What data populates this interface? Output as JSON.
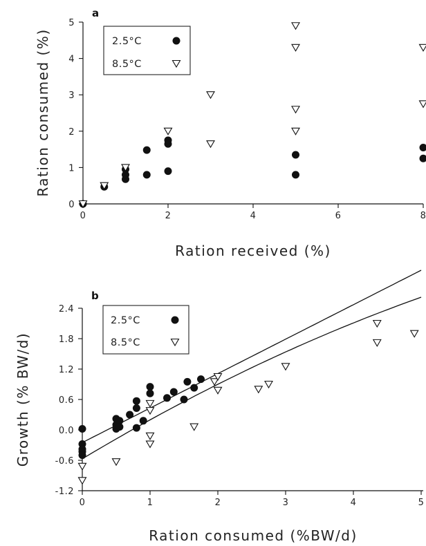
{
  "chart_data": [
    {
      "type": "scatter",
      "panel_label": "a",
      "xlabel": "Ration received (%)",
      "ylabel": "Ration consumed (%)",
      "xlim": [
        0,
        8
      ],
      "ylim": [
        0,
        5
      ],
      "xticks": [
        0,
        2,
        4,
        6,
        8
      ],
      "yticks": [
        0,
        1,
        2,
        3,
        4,
        5
      ],
      "legend_position": "top-left",
      "series": [
        {
          "name": "2.5°C",
          "marker": "filled-circle",
          "points": [
            [
              0,
              0
            ],
            [
              0.5,
              0.47
            ],
            [
              1,
              0.68
            ],
            [
              1,
              0.8
            ],
            [
              1,
              0.95
            ],
            [
              1.5,
              0.8
            ],
            [
              1.5,
              1.48
            ],
            [
              2,
              0.9
            ],
            [
              2,
              1.65
            ],
            [
              2,
              1.75
            ],
            [
              5,
              0.8
            ],
            [
              5,
              1.35
            ],
            [
              8,
              1.25
            ],
            [
              8,
              1.55
            ]
          ]
        },
        {
          "name": "8.5°C",
          "marker": "open-triangle",
          "points": [
            [
              0,
              0
            ],
            [
              0.5,
              0.5
            ],
            [
              1,
              1.0
            ],
            [
              2,
              2.0
            ],
            [
              3,
              1.65
            ],
            [
              3,
              3.0
            ],
            [
              5,
              2.0
            ],
            [
              5,
              2.6
            ],
            [
              5,
              4.3
            ],
            [
              5,
              4.9
            ],
            [
              8,
              2.75
            ],
            [
              8,
              4.3
            ]
          ]
        }
      ]
    },
    {
      "type": "scatter",
      "panel_label": "b",
      "xlabel": "Ration consumed (%BW/d)",
      "ylabel": "Growth (% BW/d)",
      "xlim": [
        0,
        5
      ],
      "ylim": [
        -1.2,
        2.4
      ],
      "xticks": [
        0,
        1,
        2,
        3,
        4,
        5
      ],
      "yticks": [
        "-1.2",
        "-0.6",
        "0.0",
        "0.6",
        "1.2",
        "1.8",
        "2.4"
      ],
      "legend_position": "top-left",
      "series": [
        {
          "name": "2.5°C",
          "marker": "filled-circle",
          "points": [
            [
              0,
              0.02
            ],
            [
              0,
              -0.28
            ],
            [
              0,
              -0.38
            ],
            [
              0,
              -0.43
            ],
            [
              0,
              -0.5
            ],
            [
              0.5,
              0.02
            ],
            [
              0.5,
              0.1
            ],
            [
              0.5,
              0.22
            ],
            [
              0.55,
              0.18
            ],
            [
              0.55,
              0.06
            ],
            [
              0.7,
              0.3
            ],
            [
              0.8,
              0.04
            ],
            [
              0.8,
              0.43
            ],
            [
              0.8,
              0.57
            ],
            [
              0.9,
              0.18
            ],
            [
              1,
              0.72
            ],
            [
              1,
              0.85
            ],
            [
              1.25,
              0.63
            ],
            [
              1.35,
              0.75
            ],
            [
              1.5,
              0.6
            ],
            [
              1.55,
              0.95
            ],
            [
              1.65,
              0.83
            ],
            [
              1.75,
              1.0
            ]
          ]
        },
        {
          "name": "8.5°C",
          "marker": "open-triangle",
          "points": [
            [
              0,
              -0.72
            ],
            [
              0,
              -1.0
            ],
            [
              0.5,
              -0.63
            ],
            [
              1,
              0.52
            ],
            [
              1,
              0.38
            ],
            [
              1,
              -0.12
            ],
            [
              1,
              -0.28
            ],
            [
              1.65,
              0.06
            ],
            [
              1.95,
              0.95
            ],
            [
              2,
              1.05
            ],
            [
              2,
              0.78
            ],
            [
              2.6,
              0.8
            ],
            [
              2.75,
              0.9
            ],
            [
              3,
              1.25
            ],
            [
              4.35,
              1.72
            ],
            [
              4.35,
              2.1
            ],
            [
              4.9,
              1.9
            ]
          ]
        }
      ],
      "fit_curves": [
        {
          "name": "2.5°C",
          "intercept": -0.25,
          "slope": 0.68,
          "quad": 0.0
        },
        {
          "name": "8.5°C",
          "intercept": -0.57,
          "slope": 0.8,
          "quad": -0.0325
        }
      ]
    }
  ]
}
